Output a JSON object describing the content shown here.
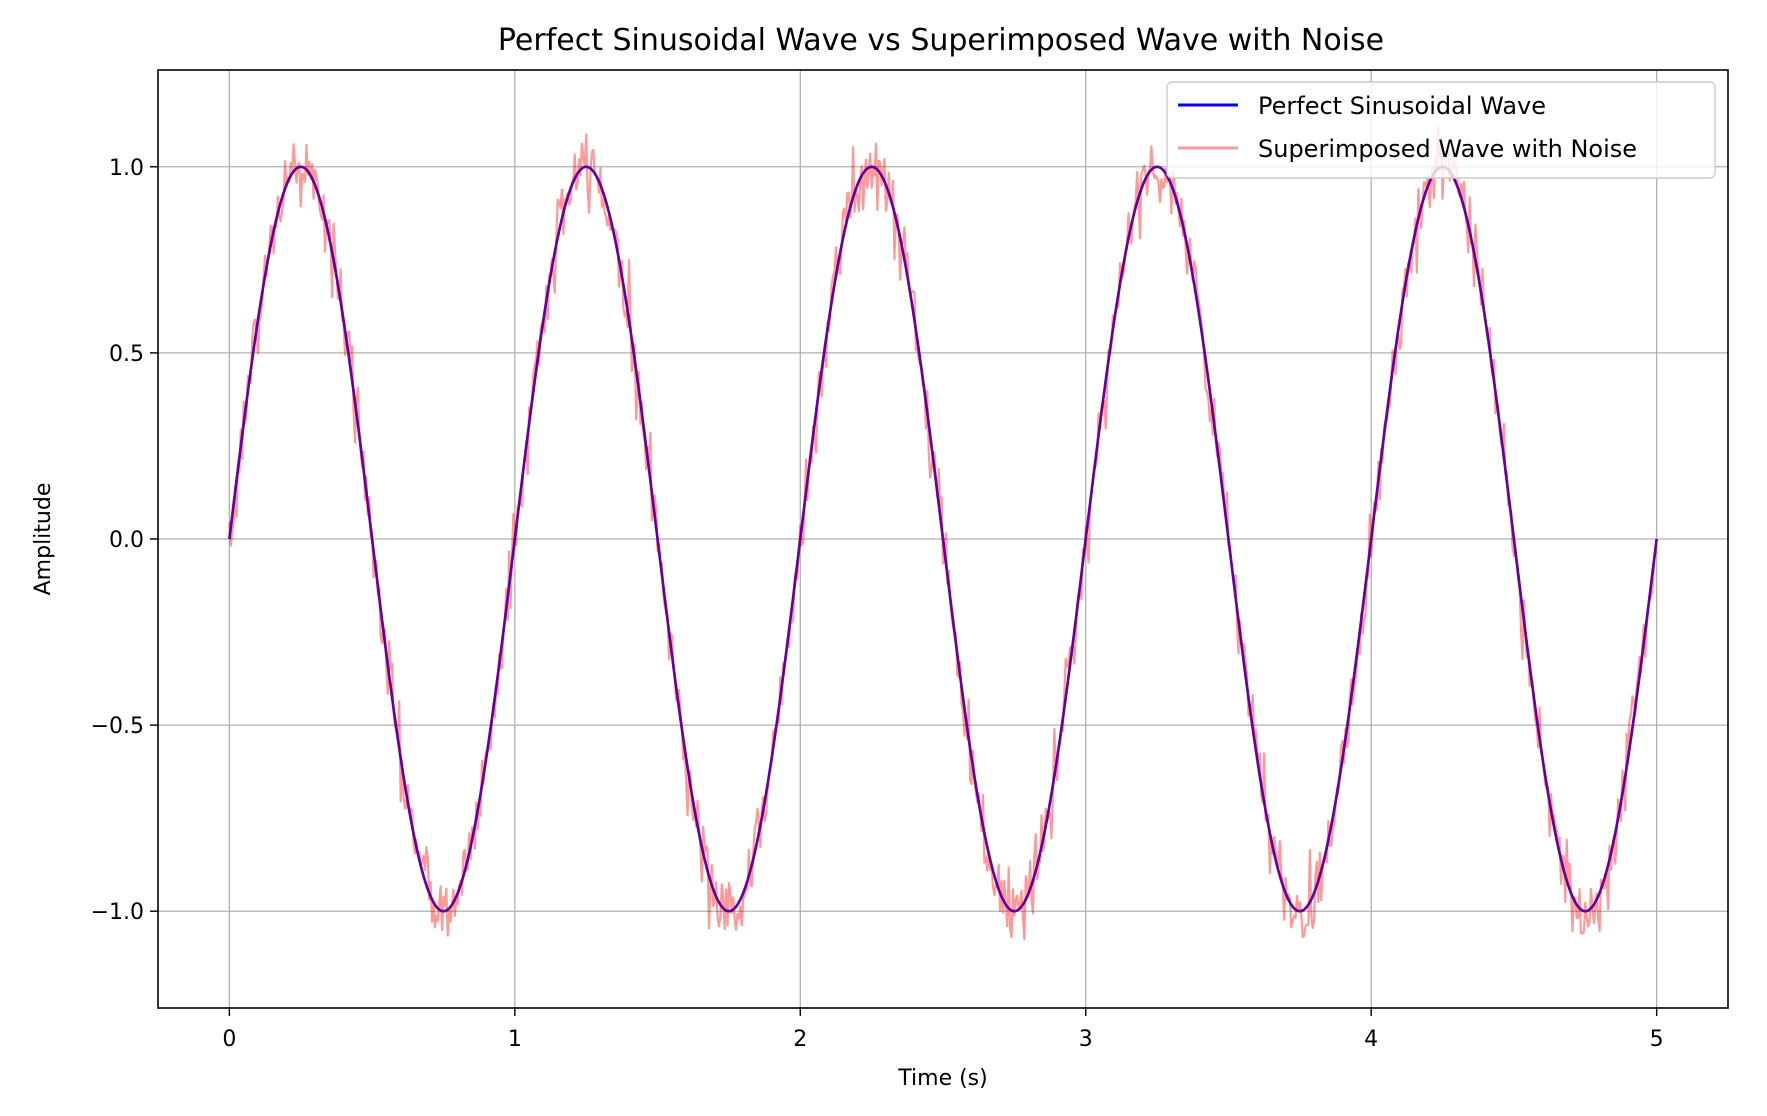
{
  "chart_data": {
    "type": "line",
    "title": "Perfect Sinusoidal Wave vs Superimposed Wave with Noise",
    "xlabel": "Time (s)",
    "ylabel": "Amplitude",
    "xlim": [
      -0.25,
      5.25
    ],
    "ylim": [
      -1.26,
      1.26
    ],
    "xticks": [
      0,
      1,
      2,
      3,
      4,
      5
    ],
    "xtick_labels": [
      "0",
      "1",
      "2",
      "3",
      "4",
      "5"
    ],
    "yticks": [
      1.0,
      0.5,
      0.0,
      -0.5,
      -1.0
    ],
    "ytick_labels": [
      "1.0",
      "0.5",
      "0.0",
      "−0.5",
      "−1.0"
    ],
    "grid": true,
    "legend_position": "upper right",
    "series": [
      {
        "name": "Perfect Sinusoidal Wave",
        "color": "#0000ff",
        "function": "y = sin(2πx)",
        "frequency_hz": 1,
        "amplitude": 1.0,
        "x_range": [
          0,
          5
        ]
      },
      {
        "name": "Superimposed Wave with Noise",
        "color": "#ff0000",
        "opacity": 0.4,
        "function": "y = sin(2πx) + noise",
        "noise_amplitude": 0.05,
        "x_range": [
          0,
          5
        ]
      }
    ]
  }
}
